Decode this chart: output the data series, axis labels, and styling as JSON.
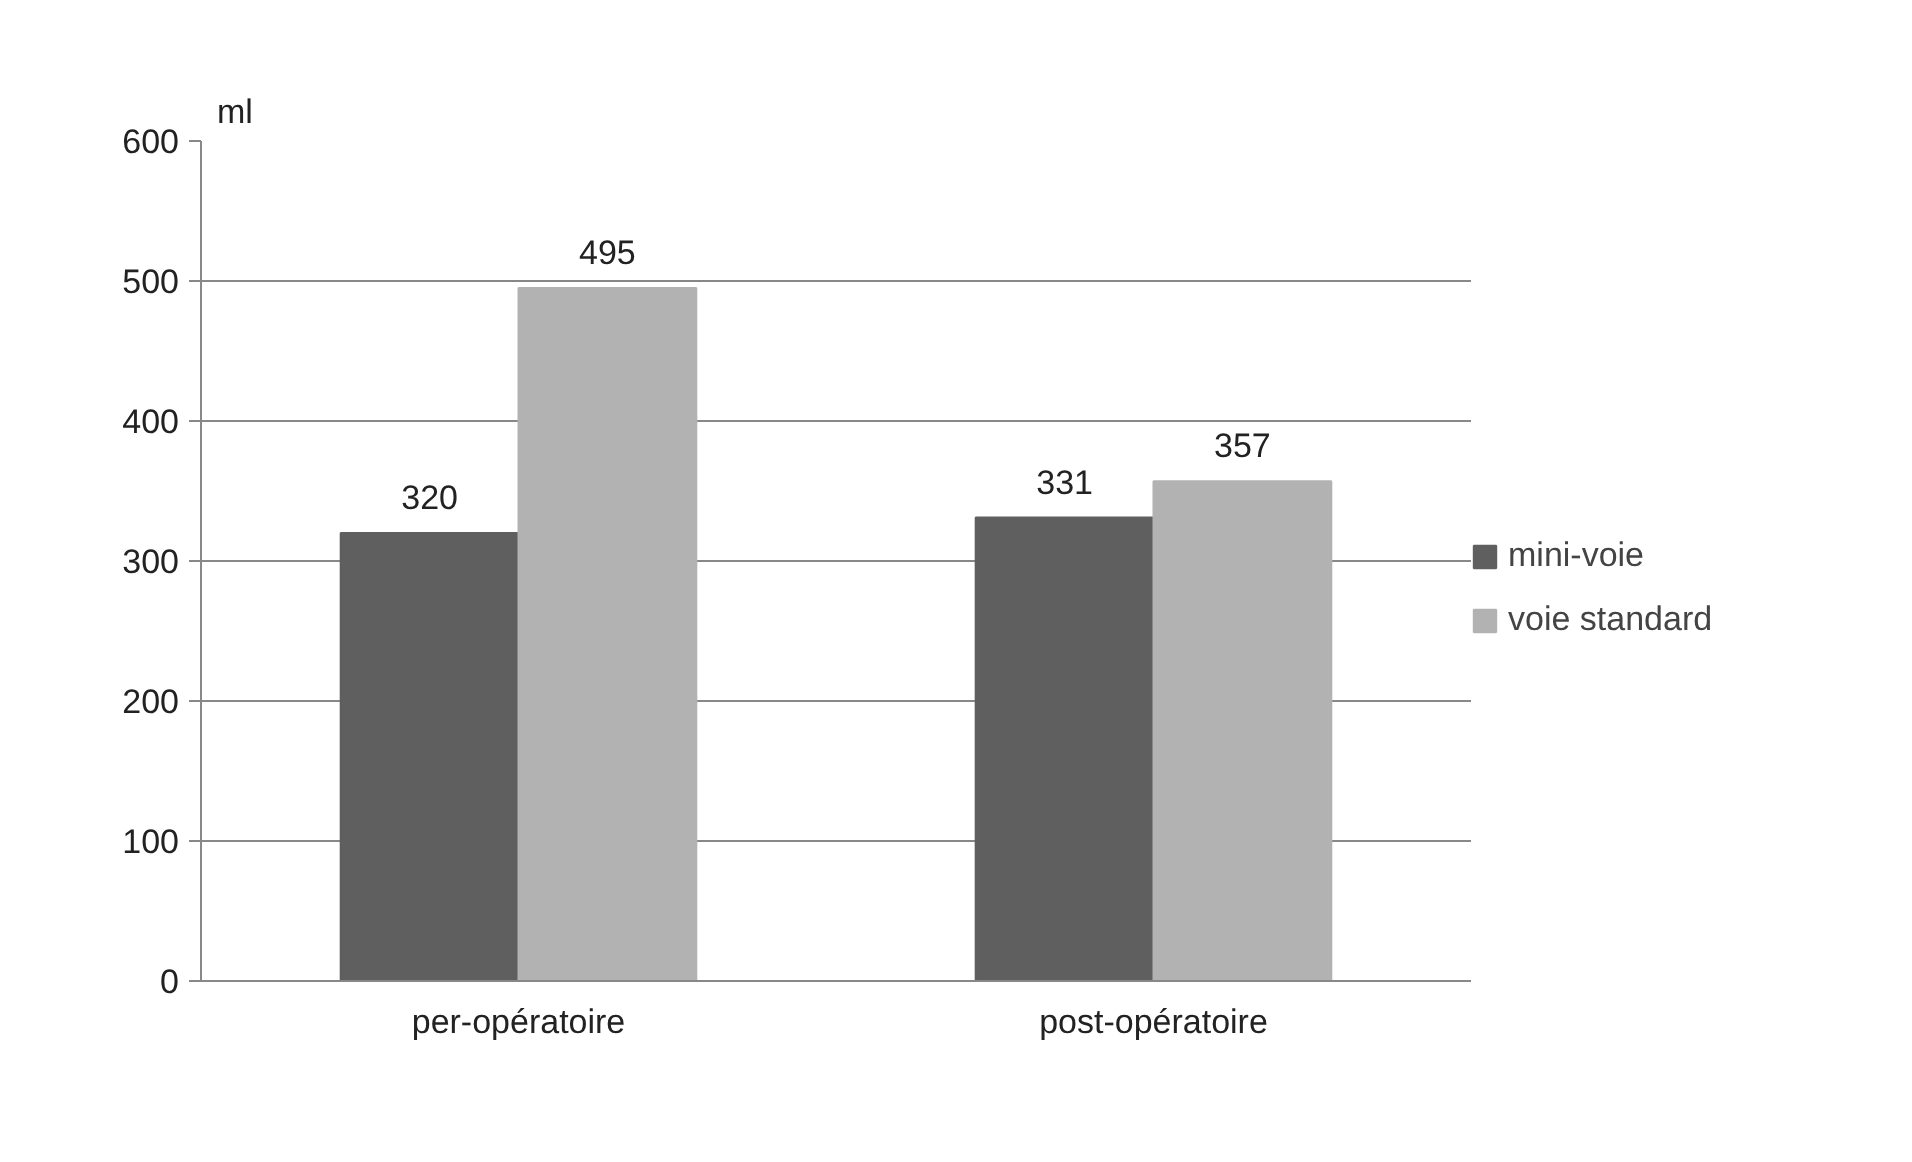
{
  "chart_data": {
    "type": "bar",
    "ylabel": "ml",
    "categories": [
      "per-opératoire",
      "post-opératoire"
    ],
    "series": [
      {
        "name": "mini-voie",
        "color": "#5f5f5f",
        "values": [
          320,
          331
        ]
      },
      {
        "name": "voie standard",
        "color": "#b2b2b2",
        "values": [
          495,
          357
        ]
      }
    ],
    "ylim": [
      0,
      600
    ],
    "yticks": [
      0,
      100,
      200,
      300,
      400,
      500,
      600
    ],
    "grid": "y",
    "legend": "right",
    "data_labels": true
  }
}
